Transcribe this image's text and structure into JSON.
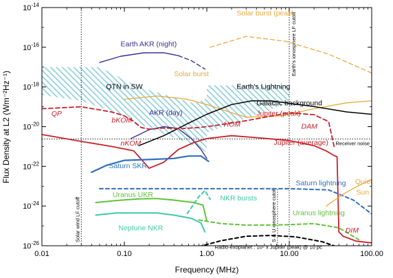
{
  "chart_data": {
    "type": "line",
    "xlabel": "Frequency (MHz)",
    "ylabel": "Flux Density at L2 (Wm⁻²Hz⁻¹)",
    "x_scale": "log",
    "y_scale": "log",
    "xlim": [
      0.01,
      100
    ],
    "ylim": [
      1e-26,
      1e-14
    ],
    "x_ticks": [
      {
        "v": 0.01,
        "label": "0.01"
      },
      {
        "v": 0.1,
        "label": "0.10"
      },
      {
        "v": 1,
        "label": "1.00"
      },
      {
        "v": 10,
        "label": "10.00"
      },
      {
        "v": 100,
        "label": "100.00"
      }
    ],
    "y_ticks": [
      {
        "v": 1e-14,
        "base": "10",
        "exp": "-14"
      },
      {
        "v": 1e-16,
        "base": "10",
        "exp": "-16"
      },
      {
        "v": 1e-18,
        "base": "10",
        "exp": "-18"
      },
      {
        "v": 1e-20,
        "base": "10",
        "exp": "-20"
      },
      {
        "v": 1e-22,
        "base": "10",
        "exp": "-22"
      },
      {
        "v": 1e-24,
        "base": "10",
        "exp": "-24"
      },
      {
        "v": 1e-26,
        "base": "10",
        "exp": "-26"
      }
    ],
    "series": [
      {
        "name": "Solar burst (peak)",
        "color": "#E8A93A",
        "dash": "6,4",
        "width": 1.3,
        "points": [
          [
            1.1,
            1e-16
          ],
          [
            3,
            3.5e-16
          ],
          [
            9,
            2e-16
          ],
          [
            30,
            4.5e-17
          ],
          [
            100,
            5e-18
          ]
        ]
      },
      {
        "name": "Solar burst",
        "color": "#E8A93A",
        "dash": "",
        "width": 1.3,
        "points": [
          [
            0.1,
            2.4e-19
          ],
          [
            0.25,
            3.5e-19
          ],
          [
            0.55,
            2.5e-19
          ],
          [
            1,
            1.3e-19
          ],
          [
            2,
            5e-20
          ],
          [
            3,
            3e-20
          ],
          [
            8,
            3.5e-20
          ],
          [
            20,
            8e-20
          ],
          [
            50,
            1.6e-19
          ],
          [
            100,
            2e-19
          ]
        ]
      },
      {
        "name": "Earth AKR (night)",
        "color": "#3A2E8E",
        "dash": "",
        "width": 1.4,
        "points": [
          [
            0.05,
            1.7e-17
          ],
          [
            0.09,
            3.5e-17
          ],
          [
            0.17,
            5.2e-17
          ],
          [
            0.3,
            5.3e-17
          ],
          [
            0.45,
            3.8e-17
          ]
        ]
      },
      {
        "name": "Earth AKR (night) extension",
        "color": "#3A2E8E",
        "dash": "6,4",
        "width": 1.4,
        "points": [
          [
            0.45,
            3.8e-17
          ],
          [
            0.65,
            2.1e-17
          ],
          [
            0.95,
            8e-18
          ]
        ]
      },
      {
        "name": "AKR (day)",
        "color": "#3A2E8E",
        "dash": "",
        "width": 1.4,
        "points": [
          [
            0.12,
            2.5e-21
          ],
          [
            0.2,
            7e-21
          ],
          [
            0.3,
            1e-20
          ],
          [
            0.45,
            8e-21
          ],
          [
            0.65,
            2.5e-21
          ],
          [
            0.85,
            7e-22
          ],
          [
            1,
            2.5e-22
          ]
        ]
      },
      {
        "name": "Galactic background",
        "color": "#000000",
        "dash": "",
        "width": 1.5,
        "points": [
          [
            0.15,
            1.1e-21
          ],
          [
            0.3,
            3.5e-21
          ],
          [
            0.6,
            1.5e-20
          ],
          [
            1,
            4.2e-20
          ],
          [
            2,
            1.3e-19
          ],
          [
            3.5,
            2e-19
          ],
          [
            6,
            2e-19
          ],
          [
            10,
            1.5e-19
          ],
          [
            20,
            1.02e-19
          ],
          [
            50,
            5.5e-20
          ],
          [
            100,
            4.2e-20
          ]
        ]
      },
      {
        "name": "Jupiter (peak)",
        "color": "#C8202A",
        "dash": "6,4",
        "width": 1.8,
        "points": [
          [
            0.01,
            8e-20
          ],
          [
            0.03,
            1e-19
          ],
          [
            0.07,
            5.5e-20
          ],
          [
            0.1,
            3.5e-20
          ],
          [
            0.13,
            1.8e-20
          ],
          [
            0.16,
            9e-21
          ],
          [
            0.2,
            7.5e-21
          ],
          [
            0.3,
            8.5e-21
          ],
          [
            0.5,
            8e-21
          ],
          [
            0.8,
            9e-21
          ],
          [
            1.2,
            1.1e-20
          ],
          [
            3,
            2e-20
          ],
          [
            10,
            5e-20
          ],
          [
            20,
            4e-20
          ],
          [
            30,
            1.8e-20
          ],
          [
            35,
            1e-21
          ]
        ]
      },
      {
        "name": "Jupiter (average)",
        "color": "#C8202A",
        "dash": "",
        "width": 1.8,
        "points": [
          [
            0.01,
            4e-21
          ],
          [
            0.03,
            1.8e-21
          ],
          [
            0.07,
            1e-21
          ],
          [
            0.13,
            6e-22
          ],
          [
            0.2,
            8e-23
          ],
          [
            0.3,
            1.6e-22
          ],
          [
            0.45,
            7e-22
          ],
          [
            0.7,
            1.6e-21
          ],
          [
            1,
            2.5e-21
          ],
          [
            2,
            3.5e-21
          ],
          [
            4,
            2.8e-21
          ],
          [
            10,
            2e-21
          ],
          [
            20,
            1.1e-21
          ],
          [
            28,
            6e-22
          ],
          [
            35,
            3.5e-22
          ],
          [
            38,
            3e-22
          ],
          [
            40,
            5e-26
          ],
          [
            45,
            3e-26
          ],
          [
            65,
            1.7e-26
          ],
          [
            100,
            1.4e-26
          ]
        ]
      },
      {
        "name": "Saturn SKR",
        "color": "#2E6FBF",
        "dash": "",
        "width": 2.2,
        "points": [
          [
            0.04,
            5e-23
          ],
          [
            0.06,
            1.1e-22
          ],
          [
            0.1,
            2e-22
          ],
          [
            0.2,
            2.2e-22
          ],
          [
            0.4,
            2.5e-22
          ],
          [
            0.6,
            3.3e-22
          ],
          [
            0.85,
            3.3e-22
          ],
          [
            1.05,
            1.8e-22
          ]
        ]
      },
      {
        "name": "Saturn lightning",
        "color": "#2E6FBF",
        "dash": "5,4",
        "width": 2.0,
        "points": [
          [
            0.05,
            7.5e-24
          ],
          [
            1,
            7.5e-24
          ],
          [
            10,
            7.5e-24
          ],
          [
            30,
            6.5e-24
          ],
          [
            60,
            2e-24
          ],
          [
            100,
            4e-25
          ]
        ]
      },
      {
        "name": "Uranus UKR",
        "color": "#5FC23B",
        "dash": "",
        "width": 2.0,
        "points": [
          [
            0.045,
            1.5e-24
          ],
          [
            0.08,
            1.9e-24
          ],
          [
            0.15,
            2.3e-24
          ],
          [
            0.25,
            2.4e-24
          ],
          [
            0.4,
            2e-24
          ],
          [
            0.7,
            1.5e-24
          ],
          [
            0.9,
            1.1e-24
          ],
          [
            1.0,
            1.7e-25
          ]
        ]
      },
      {
        "name": "Uranus lightning",
        "color": "#5FC23B",
        "dash": "5,4",
        "width": 2.0,
        "points": [
          [
            0.8,
            2e-25
          ],
          [
            1.5,
            1.3e-25
          ],
          [
            3,
            1.1e-25
          ],
          [
            6,
            1.1e-25
          ],
          [
            10,
            1.15e-25
          ],
          [
            20,
            1.3e-25
          ],
          [
            40,
            8e-26
          ],
          [
            70,
            2e-26
          ]
        ]
      },
      {
        "name": "Neptune NKR",
        "color": "#3DC8A7",
        "dash": "",
        "width": 2.0,
        "points": [
          [
            0.045,
            3.5e-25
          ],
          [
            0.08,
            4.5e-25
          ],
          [
            0.14,
            4.5e-25
          ],
          [
            0.25,
            4.5e-25
          ],
          [
            0.4,
            3.5e-25
          ],
          [
            0.65,
            2.4e-25
          ],
          [
            0.85,
            1.4e-25
          ],
          [
            0.95,
            5e-26
          ]
        ]
      },
      {
        "name": "NKR bursts",
        "color": "#3DC8A7",
        "dash": "5,4",
        "width": 2.0,
        "points": [
          [
            0.58,
            4.2e-25
          ],
          [
            0.68,
            1.1e-24
          ],
          [
            0.8,
            3e-24
          ],
          [
            0.95,
            6e-24
          ],
          [
            1.1,
            2.2e-24
          ]
        ]
      },
      {
        "name": "Radio-exoplanet",
        "color": "#000000",
        "dash": "5,4",
        "width": 2.0,
        "points": [
          [
            0.8,
            9e-27
          ],
          [
            1.5,
            1.8e-26
          ],
          [
            3,
            3e-26
          ],
          [
            6,
            3.3e-26
          ],
          [
            12,
            2.8e-26
          ],
          [
            25,
            1.6e-26
          ],
          [
            35,
            1e-26
          ]
        ]
      },
      {
        "name": "Quiet Sun",
        "color": "#E8A93A",
        "dash": "",
        "width": 1.3,
        "points": [
          [
            28,
            1e-24
          ],
          [
            45,
            4e-24
          ],
          [
            70,
            1.1e-23
          ],
          [
            100,
            2.2e-23
          ]
        ]
      }
    ],
    "hatched_regions": [
      {
        "name": "QTN in SW",
        "color": "#8FD0DC",
        "points": [
          [
            0.01,
            1e-17
          ],
          [
            0.05,
            1e-17
          ],
          [
            0.15,
            1e-18
          ],
          [
            0.7,
            1.5e-19
          ],
          [
            1.0,
            2.7e-19
          ],
          [
            1.0,
            5e-22
          ],
          [
            0.6,
            1.5e-21
          ],
          [
            0.2,
            8e-21
          ],
          [
            0.08,
            5e-20
          ],
          [
            0.03,
            2e-19
          ],
          [
            0.01,
            4e-19
          ]
        ]
      },
      {
        "name": "Earth's Lightning",
        "color": "#8FD0DC",
        "points": [
          [
            1.0,
            1.2e-18
          ],
          [
            10,
            1.2e-18
          ],
          [
            10,
            1.6e-19
          ],
          [
            1.0,
            5e-21
          ]
        ]
      }
    ],
    "vlines": [
      {
        "x": 0.03,
        "label": "Solar wind LF cutoff"
      },
      {
        "x": 10,
        "label": "Earth's ionosphere LF cutoff"
      },
      {
        "x": 7.2,
        "label": "S & U ionosphere cutoff"
      }
    ],
    "hlines": [
      {
        "y": 2.4e-21,
        "label": "Receiver noise"
      }
    ],
    "annotations": [
      {
        "text": "Solar burst (peak)",
        "x": 2.3,
        "y": 4e-15,
        "color": "#E8A93A",
        "italic": false
      },
      {
        "text": "Earth AKR (night)",
        "x": 0.09,
        "y": 1.1e-16,
        "color": "#3A2E8E",
        "italic": false
      },
      {
        "text": "Solar burst",
        "x": 0.4,
        "y": 3.5e-18,
        "color": "#E8A93A",
        "italic": false
      },
      {
        "text": "QTN in SW",
        "x": 0.06,
        "y": 8e-19,
        "color": "#000000",
        "italic": false
      },
      {
        "text": "Earth's Lightning",
        "x": 2.3,
        "y": 8e-19,
        "color": "#000000",
        "italic": false
      },
      {
        "text": "Galactic background",
        "x": 4,
        "y": 1.2e-19,
        "color": "#000000",
        "italic": false
      },
      {
        "text": "QP",
        "x": 0.013,
        "y": 3.5e-20,
        "color": "#C8202A",
        "italic": true
      },
      {
        "text": "bKOM",
        "x": 0.07,
        "y": 1.6e-20,
        "color": "#C8202A",
        "italic": true
      },
      {
        "text": "AKR (day)",
        "x": 0.2,
        "y": 3.8e-20,
        "color": "#3A2E8E",
        "italic": false
      },
      {
        "text": "Jupiter (peak)",
        "x": 4,
        "y": 3.6e-20,
        "color": "#C8202A",
        "italic": false
      },
      {
        "text": "HOM",
        "x": 1.6,
        "y": 1e-20,
        "color": "#C8202A",
        "italic": true
      },
      {
        "text": "DAM",
        "x": 14,
        "y": 8e-21,
        "color": "#C8202A",
        "italic": true
      },
      {
        "text": "nKOM",
        "x": 0.09,
        "y": 1.1e-21,
        "color": "#C8202A",
        "italic": true
      },
      {
        "text": "Jupiter (average)",
        "x": 6.5,
        "y": 1.2e-21,
        "color": "#C8202A",
        "italic": false
      },
      {
        "text": "Saturn SKR",
        "x": 0.065,
        "y": 8e-23,
        "color": "#2E6FBF",
        "italic": false
      },
      {
        "text": "Saturn lightning",
        "x": 12,
        "y": 1.1e-23,
        "color": "#2E6FBF",
        "italic": false
      },
      {
        "text": "Quiet",
        "x": 63,
        "y": 1.3e-23,
        "color": "#E8A93A",
        "italic": false
      },
      {
        "text": "Sun",
        "x": 65,
        "y": 3.8e-24,
        "color": "#E8A93A",
        "italic": false
      },
      {
        "text": "Uranus UKR",
        "x": 0.072,
        "y": 2.9e-24,
        "color": "#5FC23B",
        "italic": false
      },
      {
        "text": "NKR bursts",
        "x": 1.45,
        "y": 1.9e-24,
        "color": "#3DC8A7",
        "italic": false
      },
      {
        "text": "Uranus lightning",
        "x": 11,
        "y": 3.5e-25,
        "color": "#5FC23B",
        "italic": false
      },
      {
        "text": "Neptune NKR",
        "x": 0.085,
        "y": 6e-26,
        "color": "#3DC8A7",
        "italic": false
      },
      {
        "text": "DIM",
        "x": 48,
        "y": 4.5e-26,
        "color": "#C8202A",
        "italic": true
      },
      {
        "text": "Radio-exoplanet : 10⁵ x Jupiter (peak) @ 10 pc",
        "x": 1.25,
        "y": 7e-27,
        "color": "#000000",
        "italic": false
      }
    ]
  }
}
